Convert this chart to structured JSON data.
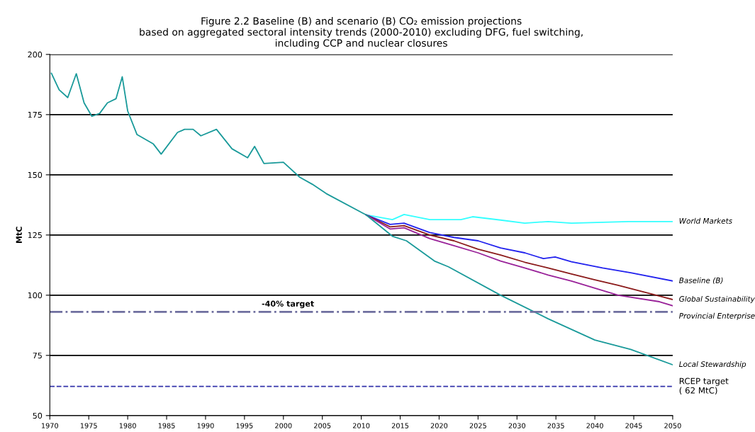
{
  "chart_data": {
    "type": "line",
    "title": "Figure 2.2 Baseline (B) and scenario (B) CO₂ emission projections\nbased on aggregated sectoral intensity trends (2000-2010) excluding DFG, fuel switching,\nincluding CCP and nuclear closures",
    "ylabel": "MtC",
    "xlim": [
      1970,
      2050
    ],
    "xticks": [
      1970,
      1975,
      1980,
      1985,
      1990,
      1995,
      2000,
      2005,
      2010,
      2015,
      2020,
      2025,
      2030,
      2035,
      2040,
      2045,
      2050
    ],
    "ylim": [
      50,
      200
    ],
    "yticks": [
      50,
      75,
      100,
      125,
      150,
      175,
      200
    ],
    "grid": "y",
    "legend": false,
    "marker": "none",
    "line_style": "solid",
    "series": [
      {
        "name": "World Markets",
        "color": "#33ffff",
        "x": [
          2010.6,
          2014,
          2015.5,
          2018.8,
          2022.8,
          2024.3,
          2027.9,
          2031,
          2034,
          2037,
          2044.3,
          2050
        ],
        "values": [
          133.4,
          131.4,
          133.5,
          131.4,
          131.4,
          132.6,
          131.2,
          129.9,
          130.6,
          129.9,
          130.6,
          130.6
        ]
      },
      {
        "name": "Baseline (B)",
        "color": "#2222ee",
        "x": [
          2010.6,
          2013.7,
          2015.5,
          2018.8,
          2021.9,
          2025,
          2027.9,
          2031,
          2033.4,
          2034.9,
          2037,
          2041,
          2044.6,
          2050
        ],
        "values": [
          133.4,
          129.4,
          129.9,
          126,
          124,
          122.6,
          119.6,
          117.6,
          115.2,
          115.9,
          113.9,
          111.3,
          109.3,
          105.9
        ]
      },
      {
        "name": "Global Sustainability",
        "color": "#8b1a1a",
        "x": [
          2010.6,
          2013.7,
          2015.5,
          2018.8,
          2021.9,
          2025,
          2027.9,
          2031,
          2034,
          2037,
          2040,
          2043,
          2048.5,
          2050
        ],
        "values": [
          133.4,
          128.4,
          128.9,
          125,
          122.6,
          119.1,
          116.7,
          113.7,
          111.3,
          108.8,
          106.4,
          104.1,
          99.5,
          98.2
        ]
      },
      {
        "name": "Provincial Enterprise",
        "color": "#992299",
        "x": [
          2010.6,
          2013.7,
          2015.5,
          2018.8,
          2021.9,
          2025,
          2027.9,
          2031,
          2034,
          2037,
          2040,
          2043,
          2048.3,
          2050
        ],
        "values": [
          133.4,
          127.5,
          128,
          123.5,
          120.6,
          117.6,
          114.2,
          111.3,
          108.4,
          105.9,
          102.9,
          100,
          97.3,
          95.6
        ]
      },
      {
        "name": "Local Stewardship",
        "color": "#1a9a9a",
        "x": [
          1970.2,
          1971.2,
          1972.3,
          1973.4,
          1974.4,
          1975.4,
          1976.4,
          1977.4,
          1978.5,
          1979.3,
          1980,
          1981.2,
          1983.3,
          1984.3,
          1986.4,
          1987.3,
          1988.4,
          1989.4,
          1991.4,
          1993.4,
          1995.4,
          1996.3,
          1997.5,
          2000,
          2002.1,
          2003.7,
          2005.5,
          2010.6,
          2014,
          2015.8,
          2019.4,
          2021.2,
          2027.9,
          2034,
          2040,
          2044.6,
          2050
        ],
        "values": [
          192.2,
          185.3,
          182.1,
          192,
          179.9,
          174.3,
          175.5,
          179.9,
          181.6,
          190.7,
          176.5,
          166.7,
          162.8,
          158.6,
          167.6,
          168.9,
          168.9,
          166.2,
          168.9,
          160.8,
          157.1,
          161.8,
          154.7,
          155.2,
          149,
          146.1,
          142.2,
          133.4,
          124.5,
          122.6,
          114.2,
          111.8,
          100,
          90.2,
          81.4,
          77.5,
          71.1
        ]
      }
    ],
    "ref_lines": [
      {
        "axis": "y",
        "value": 93.1,
        "label": "-40% target",
        "color": "#6f6f9f",
        "line_style": "dashdot"
      },
      {
        "axis": "y",
        "value": 62.1,
        "label": "RCEP target\n( 62 MtC)",
        "color": "#3333aa",
        "line_style": "dashed"
      }
    ]
  }
}
